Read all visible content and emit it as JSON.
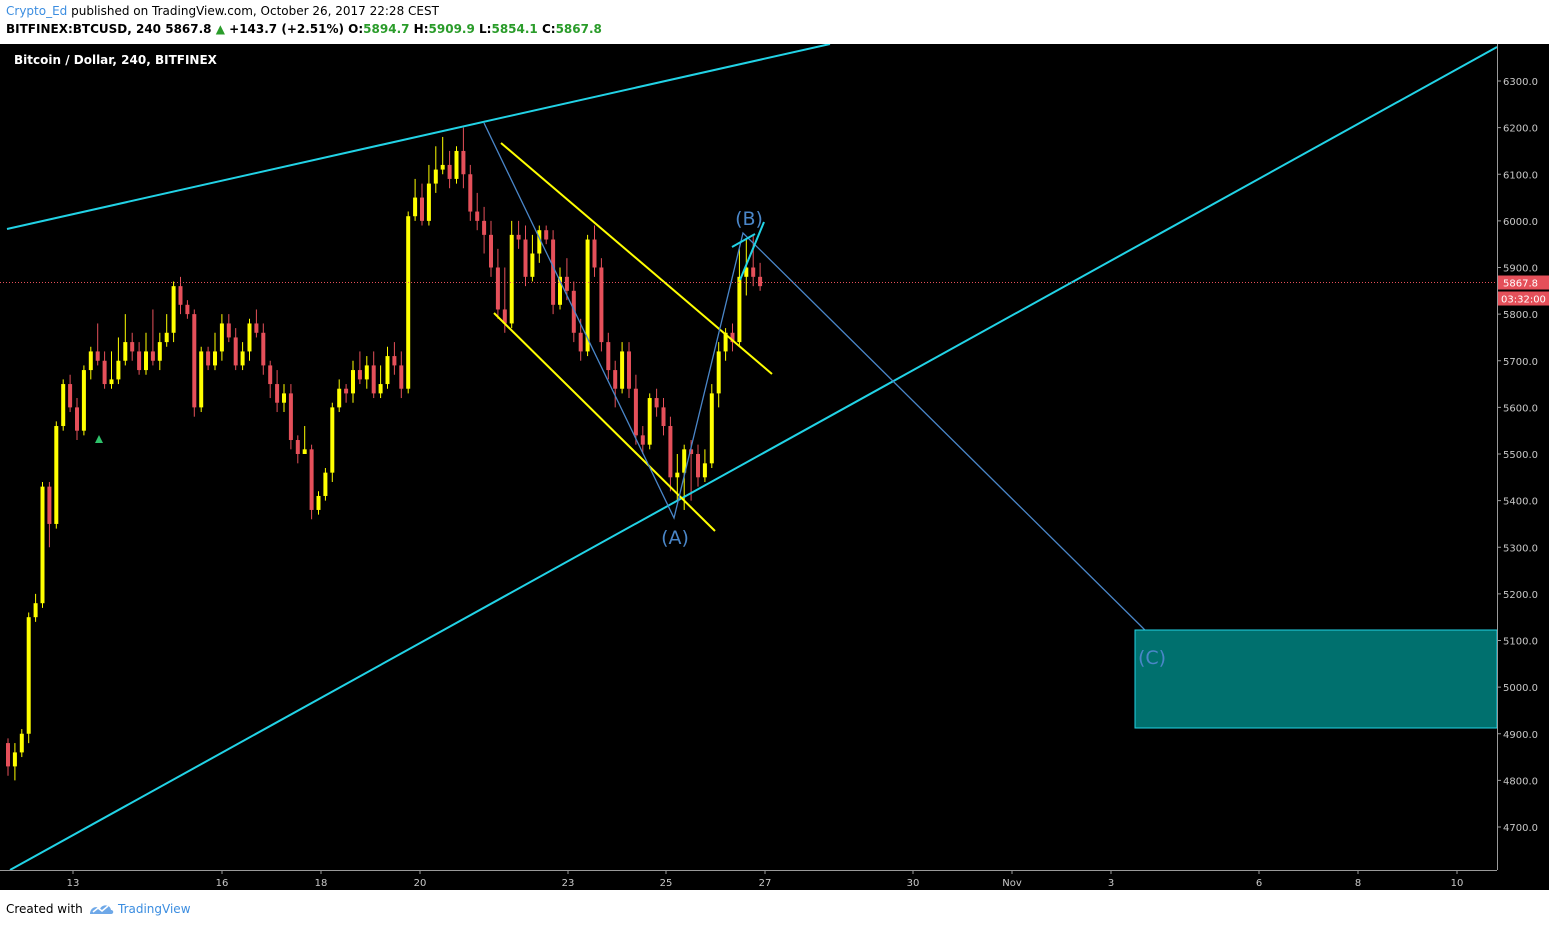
{
  "header": {
    "author": "Crypto_Ed",
    "published": "published on TradingView.com, October 26, 2017 22:28 CEST",
    "symbol": "BITFINEX:BTCUSD, 240",
    "last": "5867.8",
    "change_arrow": "▲",
    "change": "+143.7 (+2.51%)",
    "o_label": "O:",
    "o": "5894.7",
    "h_label": "H:",
    "h": "5909.9",
    "l_label": "L:",
    "l": "5854.1",
    "c_label": "C:",
    "c": "5867.8"
  },
  "footer": {
    "created": "Created with",
    "brand": "TradingView"
  },
  "colors": {
    "up": "#ffff00",
    "down": "#e5505a",
    "trend": "#22d3e6",
    "channel": "#ffff00",
    "wave": "#4a86c8",
    "target": "#00706e",
    "price_tag": "#e5505a"
  },
  "chart_data": {
    "type": "candlestick",
    "title": "Bitcoin / Dollar, 240, BITFINEX",
    "price_axis": {
      "ticks": [
        4700,
        4800,
        4900,
        5000,
        5100,
        5200,
        5300,
        5400,
        5500,
        5600,
        5700,
        5800,
        5900,
        6000,
        6100,
        6200,
        6300
      ],
      "min": 4600,
      "max": 6370
    },
    "time_axis": {
      "labels": [
        "13",
        "16",
        "18",
        "20",
        "23",
        "25",
        "27",
        "30",
        "Nov",
        "3",
        "6",
        "8",
        "10"
      ]
    },
    "last_price": "5867.8",
    "countdown": "03:32:00",
    "candles": [
      [
        4880,
        4830,
        4890,
        4810
      ],
      [
        4830,
        4860,
        4880,
        4800
      ],
      [
        4860,
        4900,
        4910,
        4850
      ],
      [
        4900,
        5150,
        5160,
        4880
      ],
      [
        5150,
        5180,
        5200,
        5140
      ],
      [
        5180,
        5430,
        5440,
        5170
      ],
      [
        5430,
        5350,
        5440,
        5300
      ],
      [
        5350,
        5560,
        5570,
        5340
      ],
      [
        5560,
        5650,
        5660,
        5550
      ],
      [
        5650,
        5600,
        5670,
        5590
      ],
      [
        5600,
        5550,
        5620,
        5530
      ],
      [
        5550,
        5680,
        5690,
        5540
      ],
      [
        5680,
        5720,
        5730,
        5660
      ],
      [
        5720,
        5700,
        5780,
        5690
      ],
      [
        5700,
        5650,
        5720,
        5640
      ],
      [
        5650,
        5660,
        5720,
        5640
      ],
      [
        5660,
        5700,
        5750,
        5650
      ],
      [
        5700,
        5740,
        5800,
        5690
      ],
      [
        5740,
        5720,
        5760,
        5700
      ],
      [
        5720,
        5680,
        5740,
        5670
      ],
      [
        5680,
        5720,
        5760,
        5670
      ],
      [
        5720,
        5700,
        5810,
        5690
      ],
      [
        5700,
        5740,
        5760,
        5680
      ],
      [
        5740,
        5760,
        5800,
        5730
      ],
      [
        5760,
        5860,
        5870,
        5740
      ],
      [
        5860,
        5820,
        5880,
        5800
      ],
      [
        5820,
        5800,
        5830,
        5790
      ],
      [
        5800,
        5600,
        5810,
        5580
      ],
      [
        5600,
        5720,
        5730,
        5590
      ],
      [
        5720,
        5690,
        5730,
        5680
      ],
      [
        5690,
        5720,
        5760,
        5680
      ],
      [
        5720,
        5780,
        5800,
        5700
      ],
      [
        5780,
        5750,
        5800,
        5740
      ],
      [
        5750,
        5690,
        5770,
        5680
      ],
      [
        5690,
        5720,
        5740,
        5680
      ],
      [
        5720,
        5780,
        5790,
        5700
      ],
      [
        5780,
        5760,
        5810,
        5750
      ],
      [
        5760,
        5690,
        5780,
        5670
      ],
      [
        5690,
        5650,
        5700,
        5620
      ],
      [
        5650,
        5610,
        5680,
        5590
      ],
      [
        5610,
        5630,
        5650,
        5590
      ],
      [
        5630,
        5530,
        5650,
        5510
      ],
      [
        5530,
        5500,
        5540,
        5480
      ],
      [
        5500,
        5510,
        5560,
        5500
      ],
      [
        5510,
        5380,
        5520,
        5360
      ],
      [
        5380,
        5410,
        5420,
        5370
      ],
      [
        5410,
        5460,
        5470,
        5400
      ],
      [
        5460,
        5600,
        5610,
        5440
      ],
      [
        5600,
        5640,
        5660,
        5590
      ],
      [
        5640,
        5630,
        5650,
        5610
      ],
      [
        5630,
        5680,
        5700,
        5610
      ],
      [
        5680,
        5660,
        5720,
        5650
      ],
      [
        5660,
        5690,
        5710,
        5640
      ],
      [
        5690,
        5630,
        5720,
        5620
      ],
      [
        5630,
        5650,
        5690,
        5620
      ],
      [
        5650,
        5710,
        5730,
        5640
      ],
      [
        5710,
        5690,
        5740,
        5670
      ],
      [
        5690,
        5640,
        5720,
        5620
      ],
      [
        5640,
        6010,
        6020,
        5630
      ],
      [
        6010,
        6050,
        6090,
        6000
      ],
      [
        6050,
        6000,
        6080,
        5990
      ],
      [
        6000,
        6080,
        6120,
        5990
      ],
      [
        6080,
        6110,
        6160,
        6060
      ],
      [
        6110,
        6120,
        6180,
        6100
      ],
      [
        6120,
        6090,
        6150,
        6070
      ],
      [
        6090,
        6150,
        6160,
        6080
      ],
      [
        6150,
        6100,
        6200,
        6070
      ],
      [
        6100,
        6020,
        6120,
        6000
      ],
      [
        6020,
        6000,
        6060,
        5980
      ],
      [
        6000,
        5970,
        6030,
        5930
      ],
      [
        5970,
        5900,
        6000,
        5880
      ],
      [
        5900,
        5810,
        5940,
        5790
      ],
      [
        5810,
        5780,
        5900,
        5760
      ],
      [
        5780,
        5970,
        6000,
        5770
      ],
      [
        5970,
        5960,
        6000,
        5940
      ],
      [
        5960,
        5880,
        5990,
        5860
      ],
      [
        5880,
        5930,
        5970,
        5870
      ],
      [
        5930,
        5980,
        5990,
        5910
      ],
      [
        5980,
        5960,
        5990,
        5950
      ],
      [
        5960,
        5820,
        5980,
        5800
      ],
      [
        5820,
        5880,
        5900,
        5810
      ],
      [
        5880,
        5850,
        5920,
        5830
      ],
      [
        5850,
        5760,
        5870,
        5740
      ],
      [
        5760,
        5720,
        5790,
        5700
      ],
      [
        5720,
        5960,
        5970,
        5710
      ],
      [
        5960,
        5900,
        5990,
        5880
      ],
      [
        5900,
        5740,
        5920,
        5720
      ],
      [
        5740,
        5680,
        5760,
        5660
      ],
      [
        5680,
        5640,
        5700,
        5600
      ],
      [
        5640,
        5720,
        5740,
        5630
      ],
      [
        5720,
        5640,
        5740,
        5620
      ],
      [
        5640,
        5540,
        5670,
        5520
      ],
      [
        5540,
        5520,
        5560,
        5500
      ],
      [
        5520,
        5620,
        5630,
        5510
      ],
      [
        5620,
        5600,
        5640,
        5580
      ],
      [
        5600,
        5560,
        5620,
        5540
      ],
      [
        5560,
        5450,
        5580,
        5420
      ],
      [
        5450,
        5460,
        5500,
        5400
      ],
      [
        5460,
        5510,
        5520,
        5380
      ],
      [
        5510,
        5500,
        5530,
        5400
      ],
      [
        5500,
        5450,
        5520,
        5430
      ],
      [
        5450,
        5480,
        5510,
        5440
      ],
      [
        5480,
        5630,
        5650,
        5470
      ],
      [
        5630,
        5720,
        5740,
        5600
      ],
      [
        5720,
        5760,
        5770,
        5700
      ],
      [
        5760,
        5740,
        5780,
        5720
      ],
      [
        5740,
        5880,
        5940,
        5730
      ],
      [
        5880,
        5900,
        5960,
        5840
      ],
      [
        5900,
        5880,
        5970,
        5860
      ],
      [
        5880,
        5860,
        5910,
        5850
      ]
    ]
  }
}
